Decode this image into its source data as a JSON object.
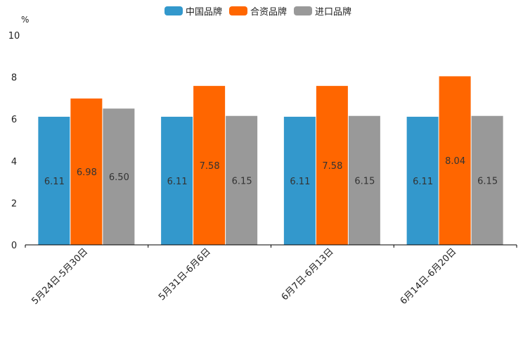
{
  "chart_data": {
    "type": "bar",
    "unit": "%",
    "ylim": [
      0,
      10
    ],
    "yticks": [
      0,
      2,
      4,
      6,
      8,
      10
    ],
    "categories": [
      "5月24日-5月30日",
      "5月31日-6月6日",
      "6月7日-6月13日",
      "6月14日-6月20日"
    ],
    "series": [
      {
        "name": "中国品牌",
        "color": "#3398cc",
        "values": [
          6.11,
          6.11,
          6.11,
          6.11
        ],
        "labels": [
          "6.11",
          "6.11",
          "6.11",
          "6.11"
        ]
      },
      {
        "name": "合资品牌",
        "color": "#ff6600",
        "values": [
          6.98,
          7.58,
          7.58,
          8.04
        ],
        "labels": [
          "6.98",
          "7.58",
          "7.58",
          "8.04"
        ]
      },
      {
        "name": "进口品牌",
        "color": "#999999",
        "values": [
          6.5,
          6.15,
          6.15,
          6.15
        ],
        "labels": [
          "6.50",
          "6.15",
          "6.15",
          "6.15"
        ]
      }
    ]
  }
}
